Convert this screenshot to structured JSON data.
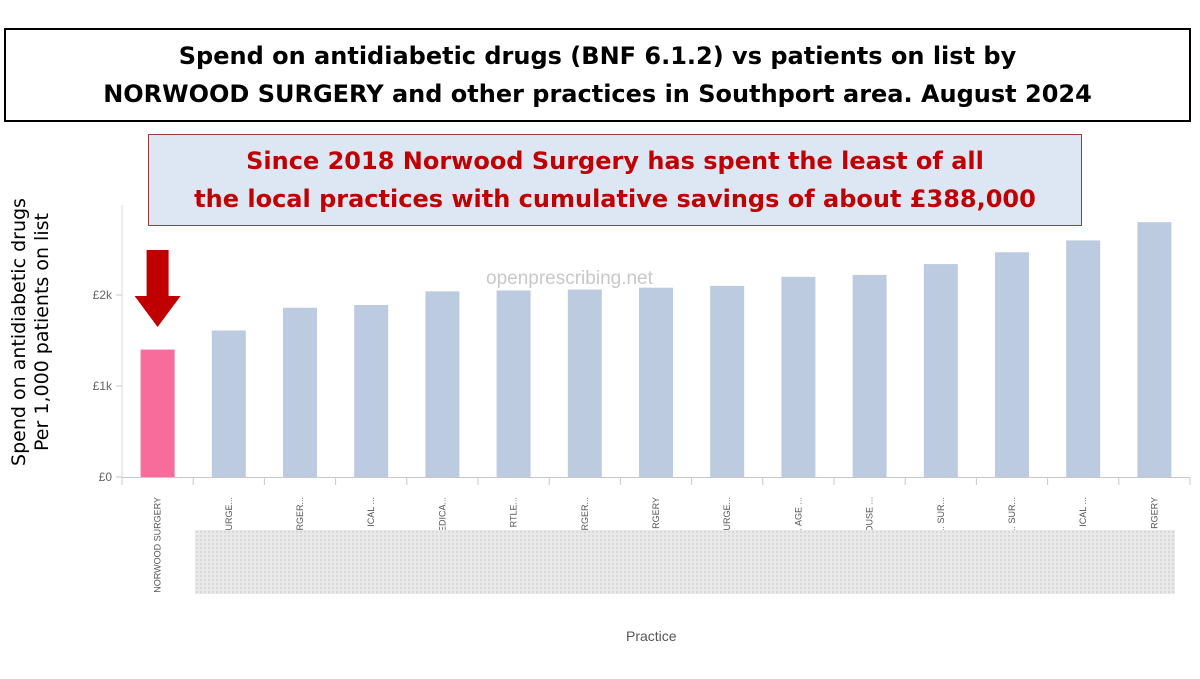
{
  "title": {
    "line1": "Spend on antidiabetic drugs (BNF 6.1.2) vs patients on list by",
    "line2": "NORWOOD SURGERY and other practices in Southport area.  August 2024"
  },
  "callout": {
    "line1": "Since 2018 Norwood Surgery has spent the least of all",
    "line2": "the local practices with cumulative savings of about £388,000"
  },
  "watermark": "openprescribing.net",
  "colors": {
    "highlight": "#f76c9b",
    "bar": "#bccbe0",
    "arrow": "#c00000"
  },
  "chart_data": {
    "type": "bar",
    "ylabel_lines": [
      "Spend on antidiabetic drugs",
      "Per 1,000 patients on list"
    ],
    "xlabel": "Practice",
    "y_ticks": [
      {
        "value": 0,
        "label": "£0"
      },
      {
        "value": 1000,
        "label": "£1k"
      },
      {
        "value": 2000,
        "label": "£2k"
      }
    ],
    "ylim": [
      0,
      2950
    ],
    "categories": [
      "NORWOOD SURGERY",
      "THE ... URGE...",
      "THE C... RGER...",
      "AIN... ICAL ...",
      "CHURC... EDICA...",
      "CHF... RTLE...",
      "THE ... RGER...",
      "... RGERY",
      "CHAI... URGE...",
      "AIN... AGE ...",
      "CUME... OUSE ...",
      "THE ... SUR...",
      "LINC... SUR...",
      "ST ... ICAL ...",
      "... RGERY"
    ],
    "values": [
      1400,
      1610,
      1860,
      1890,
      2040,
      2050,
      2060,
      2080,
      2100,
      2200,
      2220,
      2340,
      2470,
      2600,
      2800
    ],
    "highlight_index": 0,
    "grid": false
  }
}
